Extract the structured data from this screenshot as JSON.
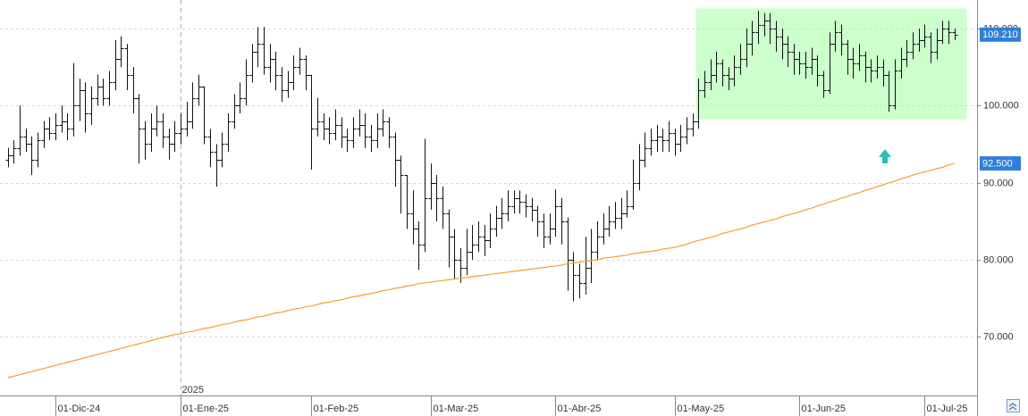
{
  "chart_data": {
    "type": "ohlc",
    "bar_color": "#111111",
    "categories": [
      null,
      null,
      null,
      null,
      null,
      null,
      null,
      null,
      "01-Dic-24",
      null,
      null,
      null,
      null,
      null,
      null,
      null,
      null,
      null,
      null,
      null,
      null,
      null,
      null,
      null,
      null,
      null,
      null,
      null,
      null,
      "01-Ene-25",
      null,
      null,
      null,
      null,
      null,
      null,
      null,
      null,
      null,
      null,
      null,
      null,
      null,
      null,
      null,
      null,
      null,
      null,
      null,
      null,
      null,
      "01-Feb-25",
      null,
      null,
      null,
      null,
      null,
      null,
      null,
      null,
      null,
      null,
      null,
      null,
      null,
      null,
      null,
      null,
      null,
      null,
      null,
      "01-Mar-25",
      null,
      null,
      null,
      null,
      null,
      null,
      null,
      null,
      null,
      null,
      null,
      null,
      null,
      null,
      null,
      null,
      null,
      null,
      null,
      null,
      "01-Abr-25",
      null,
      null,
      null,
      null,
      null,
      null,
      null,
      null,
      null,
      null,
      null,
      null,
      null,
      null,
      null,
      null,
      null,
      null,
      null,
      "01-May-25",
      null,
      null,
      null,
      null,
      null,
      null,
      null,
      null,
      null,
      null,
      null,
      null,
      null,
      null,
      null,
      null,
      null,
      null,
      null,
      null,
      "01-Jun-25",
      null,
      null,
      null,
      null,
      null,
      null,
      null,
      null,
      null,
      null,
      null,
      null,
      null,
      null,
      null,
      null,
      null,
      null,
      null,
      null,
      "01-Jul-25",
      null,
      null,
      null,
      null,
      null
    ],
    "open": [
      93,
      93.5,
      94.5,
      96,
      95,
      93,
      95.5,
      97,
      96.5,
      97.5,
      98,
      97,
      100,
      102,
      99,
      101,
      102.5,
      101,
      103,
      106,
      107.5,
      104,
      101,
      97,
      95,
      97,
      98,
      96,
      95,
      96.5,
      97,
      98,
      101,
      102.5,
      96,
      94,
      93,
      95,
      98,
      100,
      101,
      104,
      107,
      108,
      105,
      106,
      104,
      102,
      103,
      105,
      106,
      104,
      97,
      98,
      97,
      96.5,
      97.5,
      96,
      95.5,
      97,
      97.5,
      96,
      95.5,
      97,
      98,
      96,
      93,
      91,
      86,
      84,
      82,
      88,
      90,
      88,
      86,
      83,
      80,
      79,
      81,
      82,
      83,
      82.5,
      84,
      85.5,
      86,
      87,
      88,
      87.5,
      87,
      86.5,
      85,
      83,
      84,
      87,
      85,
      80,
      78,
      77,
      79,
      81,
      83,
      84,
      85,
      85.5,
      86,
      87,
      90,
      93,
      94.5,
      95.5,
      96,
      95.5,
      96.5,
      95,
      96,
      97,
      98,
      102,
      103,
      104,
      105.5,
      104,
      103.5,
      105,
      106,
      108,
      109.5,
      110.5,
      111,
      110,
      109,
      108,
      107,
      106,
      105.5,
      105,
      106,
      104,
      102,
      108,
      109.5,
      108,
      106,
      105.5,
      106.5,
      105,
      104.5,
      105,
      104,
      100,
      104.5,
      106,
      107,
      108,
      108.5,
      109,
      107,
      108.5,
      110,
      109.5
    ],
    "high": [
      94.5,
      95.5,
      100,
      97,
      96,
      96.5,
      98,
      98.5,
      99,
      100,
      99,
      105.5,
      103.5,
      103,
      102.5,
      104,
      103.5,
      104.5,
      108.5,
      109,
      108,
      105,
      101.5,
      98,
      99,
      100,
      99,
      97,
      98,
      99,
      100.5,
      103,
      104,
      102.5,
      97,
      95,
      96.5,
      99,
      101.5,
      103,
      106,
      108,
      110.2,
      110.2,
      108,
      107,
      105,
      104.5,
      106.5,
      107.5,
      106.5,
      104,
      101,
      99,
      98.5,
      99.5,
      98.5,
      97,
      98.5,
      99.5,
      99,
      97.5,
      99,
      99.5,
      98.5,
      96.5,
      93.5,
      91,
      89,
      85,
      95.7,
      92.5,
      91,
      89.5,
      86.5,
      84,
      81.5,
      84,
      84.5,
      85,
      84.5,
      86,
      87,
      88,
      89,
      89,
      89,
      88.5,
      88,
      87,
      86,
      86,
      89.1,
      88,
      85.5,
      81,
      79.5,
      83,
      84,
      85,
      86,
      87,
      87.5,
      88,
      89,
      93,
      95,
      96.5,
      97,
      97.5,
      97,
      98,
      97,
      97.5,
      98.5,
      99,
      103.5,
      104.5,
      106,
      107,
      106,
      105,
      106.5,
      108,
      110,
      111,
      112.3,
      112,
      112,
      111,
      110,
      109,
      108,
      107,
      107,
      107.5,
      106.5,
      104.5,
      109.5,
      111,
      110.5,
      108.5,
      107.5,
      108,
      107,
      106,
      106.5,
      106,
      104.5,
      106,
      107.5,
      108.5,
      109.5,
      110,
      110.5,
      109.5,
      110,
      111,
      111,
      110
    ],
    "low": [
      92,
      92.5,
      93.5,
      94,
      91,
      92,
      94.5,
      95.5,
      95.5,
      96.5,
      95.5,
      96,
      98,
      96.5,
      97.5,
      100,
      100,
      100,
      102,
      105,
      102,
      99,
      92.5,
      93,
      94,
      96,
      94.5,
      93,
      94,
      95,
      96,
      97,
      100,
      95,
      92,
      89.5,
      92,
      94,
      97,
      99,
      100,
      103,
      105,
      104,
      103,
      102,
      100.5,
      101,
      102,
      104,
      102,
      91.7,
      96,
      95.5,
      95,
      95.5,
      94.5,
      94,
      94.5,
      96,
      94.5,
      94,
      94.5,
      96,
      94.5,
      89.5,
      86,
      84,
      82,
      78.7,
      81,
      86.5,
      85,
      84,
      79,
      77.5,
      77,
      78,
      80,
      81,
      80.5,
      81.5,
      83,
      84,
      85,
      86,
      86,
      85.5,
      85,
      83,
      81.5,
      82,
      83,
      82,
      76,
      74.6,
      75,
      75.5,
      77,
      80,
      82,
      83,
      84,
      84,
      85.5,
      86.5,
      89,
      92,
      93.5,
      94,
      94,
      94,
      93.5,
      94,
      95,
      96,
      97,
      101,
      102,
      103,
      102.5,
      102,
      102.5,
      104,
      105,
      106.5,
      108,
      109,
      108,
      107,
      106,
      105,
      104,
      104,
      103.5,
      104,
      102.5,
      101,
      101.5,
      107,
      106.5,
      104,
      103.5,
      104.5,
      103,
      103,
      103.5,
      102.5,
      99.2,
      99.5,
      103.5,
      105,
      106,
      107,
      107.5,
      105.5,
      106,
      108,
      108,
      108.5
    ],
    "close": [
      93.5,
      94.5,
      96,
      95,
      93,
      95.5,
      97,
      96.5,
      97.5,
      98,
      97,
      100,
      102,
      99,
      101,
      102.5,
      101,
      103,
      106,
      107.5,
      104,
      101,
      97,
      95,
      97,
      98,
      96,
      95,
      96.5,
      97,
      98,
      101,
      102.5,
      96,
      94,
      93,
      95,
      98,
      100,
      101,
      104,
      107,
      108,
      105,
      106,
      104,
      102,
      103,
      105,
      106,
      104,
      97,
      98,
      97,
      96.5,
      97.5,
      96,
      95.5,
      97,
      97.5,
      96,
      95.5,
      97,
      98,
      96,
      93,
      91,
      86,
      84,
      82,
      88,
      90,
      88,
      86,
      83,
      80,
      79,
      81,
      82,
      83,
      82.5,
      84,
      85.5,
      86,
      87,
      88,
      87.5,
      87,
      86.5,
      85,
      83,
      84,
      87,
      85,
      80,
      78,
      77,
      79,
      81,
      83,
      84,
      85,
      85.5,
      86,
      87,
      90,
      93,
      94.5,
      95.5,
      96,
      95.5,
      96.5,
      95,
      96,
      97,
      98,
      102,
      103,
      104,
      105.5,
      104,
      103.5,
      105,
      106,
      108,
      109.5,
      110.5,
      111,
      110,
      109,
      108,
      107,
      106,
      105.5,
      105,
      106,
      104,
      102,
      108,
      109.5,
      108,
      106,
      105.5,
      106.5,
      105,
      104.5,
      105,
      104,
      100,
      104.5,
      106,
      107,
      108,
      108.5,
      109,
      107,
      108.5,
      110,
      109.5,
      109.21
    ],
    "overlay": {
      "color": "#f0a030",
      "values": [
        64.7,
        64.9,
        65.1,
        65.3,
        65.5,
        65.7,
        65.9,
        66.1,
        66.3,
        66.5,
        66.7,
        66.9,
        67.1,
        67.3,
        67.5,
        67.7,
        67.9,
        68.1,
        68.3,
        68.5,
        68.7,
        68.9,
        69.1,
        69.3,
        69.5,
        69.7,
        69.9,
        70.1,
        70.3,
        70.4,
        70.6,
        70.7,
        70.9,
        71.1,
        71.2,
        71.4,
        71.6,
        71.7,
        71.9,
        72.1,
        72.2,
        72.4,
        72.6,
        72.7,
        72.9,
        73.1,
        73.2,
        73.4,
        73.6,
        73.7,
        73.9,
        74.0,
        74.2,
        74.4,
        74.5,
        74.7,
        74.8,
        75.0,
        75.2,
        75.3,
        75.5,
        75.6,
        75.8,
        76.0,
        76.1,
        76.3,
        76.4,
        76.6,
        76.7,
        76.9,
        77.0,
        77.1,
        77.2,
        77.3,
        77.4,
        77.5,
        77.6,
        77.7,
        77.8,
        77.9,
        78.0,
        78.1,
        78.2,
        78.3,
        78.4,
        78.5,
        78.6,
        78.7,
        78.8,
        78.9,
        79.0,
        79.1,
        79.2,
        79.3,
        79.5,
        79.6,
        79.7,
        79.8,
        79.9,
        80.0,
        80.2,
        80.3,
        80.4,
        80.5,
        80.6,
        80.8,
        80.9,
        81.0,
        81.1,
        81.2,
        81.4,
        81.5,
        81.6,
        81.8,
        82.0,
        82.3,
        82.5,
        82.7,
        82.9,
        83.1,
        83.4,
        83.6,
        83.8,
        84.0,
        84.2,
        84.5,
        84.7,
        84.9,
        85.1,
        85.3,
        85.6,
        85.8,
        86.0,
        86.2,
        86.5,
        86.7,
        87.0,
        87.2,
        87.5,
        87.7,
        88.0,
        88.2,
        88.5,
        88.7,
        89.0,
        89.2,
        89.5,
        89.7,
        90.0,
        90.2,
        90.5,
        90.7,
        91.0,
        91.2,
        91.4,
        91.6,
        91.8,
        92.0,
        92.3,
        92.5
      ]
    },
    "ylim": [
      62.4,
      113.7
    ],
    "yticks": [
      {
        "value": 70,
        "label": "70.000"
      },
      {
        "value": 80,
        "label": "80.000"
      },
      {
        "value": 90,
        "label": "90.000"
      },
      {
        "value": 100,
        "label": "100.000"
      },
      {
        "value": 110,
        "label": "110.000"
      }
    ],
    "grid": true,
    "price_label_color": "#2f7fd8",
    "price_labels": [
      {
        "value": 109.21,
        "label": "109.210"
      },
      {
        "value": 92.5,
        "label": "92.500"
      }
    ],
    "highlight": {
      "x": [
        115.6,
        161.1
      ],
      "y": [
        98.2,
        112.6
      ],
      "color": "#ccffcc"
    },
    "year_marker": {
      "category": 29,
      "label": "2025"
    }
  }
}
